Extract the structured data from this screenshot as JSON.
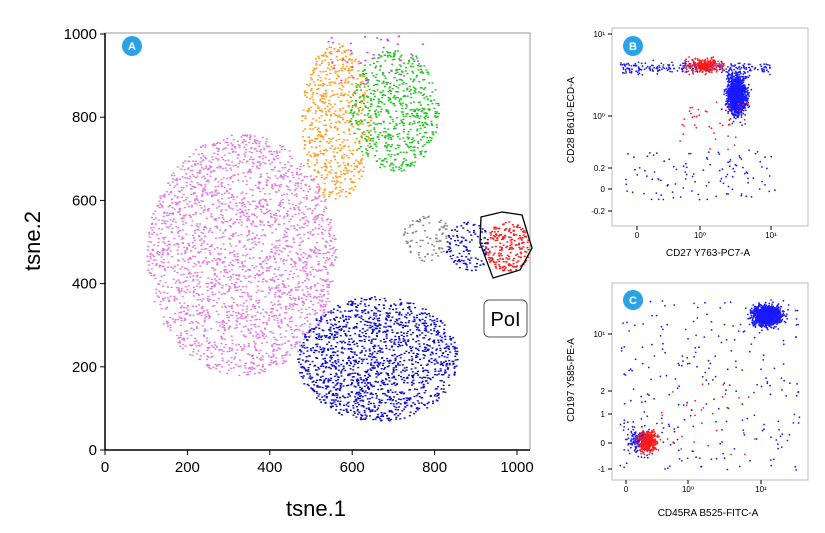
{
  "chart_data": [
    {
      "panel": "A",
      "type": "scatter",
      "xlabel": "tsne.1",
      "ylabel": "tsne.2",
      "xlim": [
        0,
        1020
      ],
      "ylim": [
        0,
        1020
      ],
      "xticks": [
        "0",
        "200",
        "400",
        "600",
        "800",
        "1000"
      ],
      "yticks": [
        "0",
        "200",
        "400",
        "600",
        "800",
        "1000"
      ],
      "gate_label": "PoI",
      "clusters": [
        {
          "color": "#e07ae0",
          "cx": 330,
          "cy": 470,
          "rx": 230,
          "ry": 290,
          "n": 2400
        },
        {
          "color": "#0a0ad0",
          "cx": 660,
          "cy": 220,
          "rx": 195,
          "ry": 150,
          "n": 1500
        },
        {
          "color": "#ff9a1a",
          "cx": 560,
          "cy": 790,
          "rx": 85,
          "ry": 190,
          "n": 600
        },
        {
          "color": "#1fc41f",
          "cx": 700,
          "cy": 820,
          "rx": 110,
          "ry": 150,
          "n": 650
        },
        {
          "color": "#ff1a1a",
          "cx": 975,
          "cy": 490,
          "rx": 55,
          "ry": 60,
          "n": 220
        },
        {
          "color": "#888888",
          "cx": 780,
          "cy": 510,
          "rx": 60,
          "ry": 55,
          "n": 90
        },
        {
          "color": "#0a0ad0",
          "cx": 880,
          "cy": 490,
          "rx": 55,
          "ry": 60,
          "n": 120
        }
      ]
    },
    {
      "panel": "B",
      "type": "scatter",
      "xlabel": "CD27 Y763-PC7-A",
      "ylabel": "CD28 B610-ECD-A",
      "xticks": [
        "0",
        "10⁰",
        "10¹"
      ],
      "yticks": [
        "10¹",
        "10⁰",
        "0.2",
        "0",
        "-0.2"
      ],
      "series": [
        {
          "name": "",
          "color": "#1a1aff"
        },
        {
          "name": "",
          "color": "#ff1a1a"
        }
      ]
    },
    {
      "panel": "C",
      "type": "scatter",
      "xlabel": "CD45RA B525-FITC-A",
      "ylabel": "CD197 Y585-PE-A",
      "xticks": [
        "0",
        "10⁰",
        "10¹"
      ],
      "yticks": [
        "10¹",
        "2",
        "1",
        "0",
        "-1"
      ],
      "series": [
        {
          "name": "",
          "color": "#1a1aff"
        },
        {
          "name": "",
          "color": "#ff1a1a"
        }
      ]
    }
  ],
  "badges": {
    "a": "A",
    "b": "B",
    "c": "C"
  },
  "badge_color": "#29a3e6"
}
